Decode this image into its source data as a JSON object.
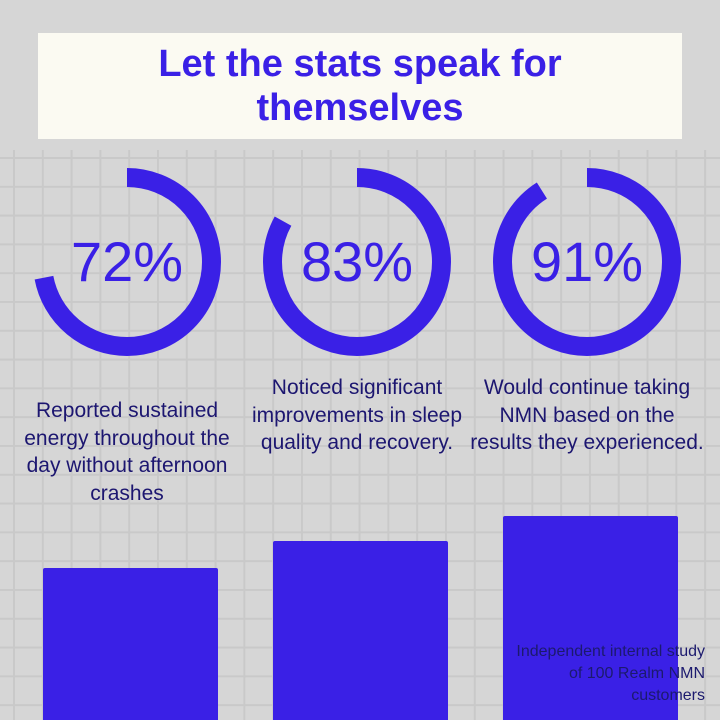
{
  "title": "Let the stats speak for themselves",
  "colors": {
    "accent": "#3a20e6",
    "text": "#1c1670",
    "background": "#d6d6d6",
    "title_bg": "#fbfaf2"
  },
  "chart_data": {
    "type": "donut",
    "title": "Let the stats speak for themselves",
    "categories": [
      "Reported sustained energy throughout the day without afternoon crashes",
      "Noticed significant improvements in sleep quality and recovery.",
      "Would continue taking NMN based on the results they experienced."
    ],
    "values": [
      72,
      83,
      91
    ],
    "value_labels": [
      "72%",
      "83%",
      "91%"
    ],
    "unit": "%",
    "range": [
      0,
      100
    ]
  },
  "footnote": "Independent internal study of 100 Realm NMN customers"
}
